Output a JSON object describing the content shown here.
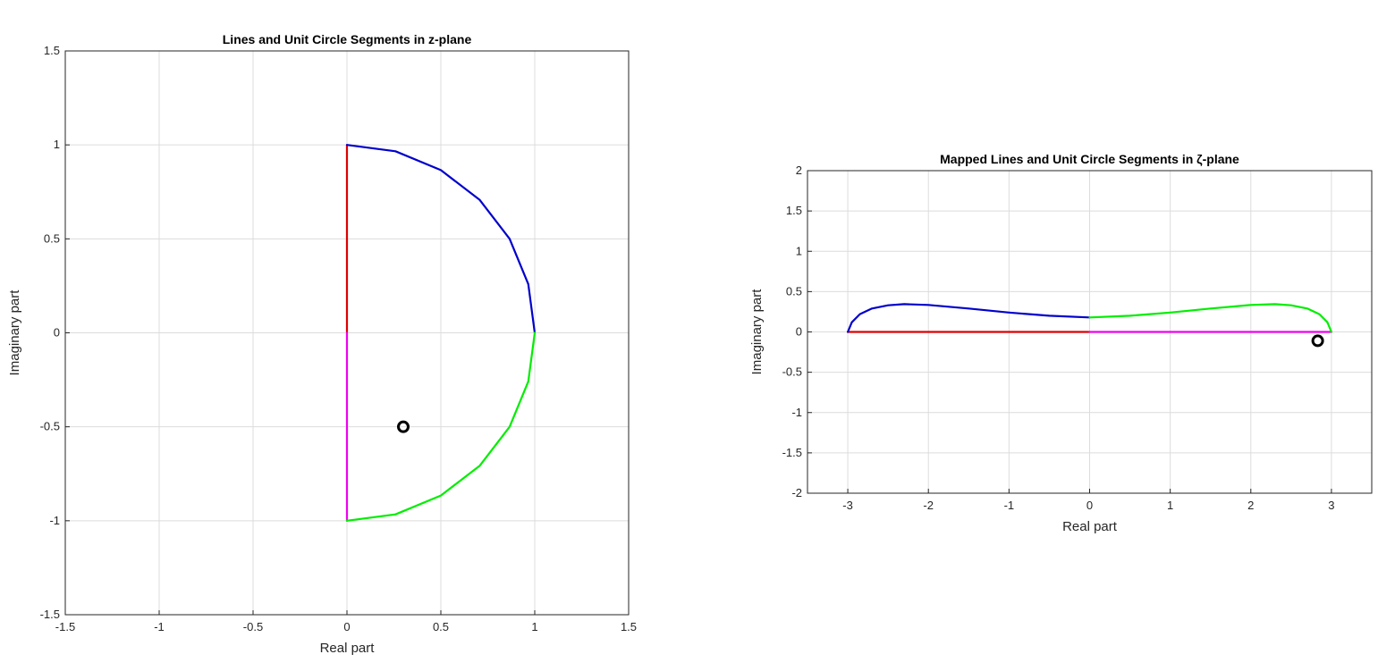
{
  "chart_data": [
    {
      "type": "line",
      "title": "Lines and Unit Circle Segments in z-plane",
      "xlabel": "Real part",
      "ylabel": "Imaginary part",
      "xlim": [
        -1.5,
        1.5
      ],
      "ylim": [
        -1.5,
        1.5
      ],
      "xticks": [
        -1.5,
        -1,
        -0.5,
        0,
        0.5,
        1,
        1.5
      ],
      "yticks": [
        -1.5,
        -1,
        -0.5,
        0,
        0.5,
        1,
        1.5
      ],
      "xtick_labels": [
        "-1.5",
        "-1",
        "-0.5",
        "0",
        "0.5",
        "1",
        "1.5"
      ],
      "ytick_labels": [
        "-1.5",
        "-1",
        "-0.5",
        "0",
        "0.5",
        "1",
        "1.5"
      ],
      "grid": true,
      "series": [
        {
          "color": "#dd0000",
          "x": [
            0,
            0
          ],
          "y": [
            0,
            1
          ]
        },
        {
          "color": "#ee00ee",
          "x": [
            0,
            0
          ],
          "y": [
            0,
            -1
          ]
        },
        {
          "color": "#0000cc",
          "x": [
            0,
            0.2588,
            0.5,
            0.7071,
            0.866,
            0.9659,
            1
          ],
          "y": [
            1,
            0.9659,
            0.866,
            0.7071,
            0.5,
            0.2588,
            0
          ]
        },
        {
          "color": "#00ee00",
          "x": [
            1,
            0.9659,
            0.866,
            0.7071,
            0.5,
            0.2588,
            0
          ],
          "y": [
            0,
            -0.2588,
            -0.5,
            -0.7071,
            -0.866,
            -0.9659,
            -1
          ]
        }
      ],
      "marker": {
        "x": 0.3,
        "y": -0.5,
        "color": "#000000"
      }
    },
    {
      "type": "line",
      "title": "Mapped Lines and Unit Circle Segments in ζ-plane",
      "xlabel": "Real part",
      "ylabel": "Imaginary part",
      "xlim": [
        -3.5,
        3.5
      ],
      "ylim": [
        -2,
        2
      ],
      "xticks": [
        -3,
        -2,
        -1,
        0,
        1,
        2,
        3
      ],
      "yticks": [
        -2,
        -1.5,
        -1,
        -0.5,
        0,
        0.5,
        1,
        1.5,
        2
      ],
      "xtick_labels": [
        "-3",
        "-2",
        "-1",
        "0",
        "1",
        "2",
        "3"
      ],
      "ytick_labels": [
        "-2",
        "-1.5",
        "-1",
        "-0.5",
        "0",
        "0.5",
        "1",
        "1.5",
        "2"
      ],
      "grid": true,
      "series": [
        {
          "color": "#dd0000",
          "x": [
            -3,
            0
          ],
          "y": [
            0,
            0
          ]
        },
        {
          "color": "#ee00ee",
          "x": [
            0,
            3
          ],
          "y": [
            0,
            0
          ]
        },
        {
          "color": "#0000cc",
          "x": [
            -3,
            -2.95,
            -2.85,
            -2.7,
            -2.5,
            -2.3,
            -2.0,
            -1.5,
            -1.0,
            -0.5,
            0
          ],
          "y": [
            0,
            0.12,
            0.22,
            0.29,
            0.33,
            0.345,
            0.335,
            0.29,
            0.24,
            0.2,
            0.18
          ]
        },
        {
          "color": "#00ee00",
          "x": [
            0,
            0.5,
            1.0,
            1.5,
            2.0,
            2.3,
            2.5,
            2.7,
            2.85,
            2.95,
            3
          ],
          "y": [
            0.18,
            0.2,
            0.24,
            0.29,
            0.335,
            0.345,
            0.33,
            0.29,
            0.22,
            0.12,
            0
          ]
        }
      ],
      "marker": {
        "x": 2.83,
        "y": -0.11,
        "color": "#000000"
      }
    }
  ]
}
